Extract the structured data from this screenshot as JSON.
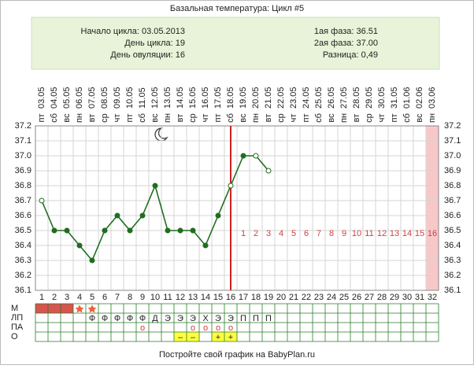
{
  "chart_data": {
    "type": "line",
    "title": "Базальная температура: Цикл #5",
    "info_left": [
      "Начало цикла: 03.05.2013",
      "День цикла: 19",
      "День овуляции: 16"
    ],
    "info_right": [
      "1ая фаза: 36.51",
      "2ая фаза: 37.00",
      "Разница: 0,49"
    ],
    "categories": [
      1,
      2,
      3,
      4,
      5,
      6,
      7,
      8,
      9,
      10,
      11,
      12,
      13,
      14,
      15,
      16,
      17,
      18,
      19,
      20,
      21,
      22,
      23,
      24,
      25,
      26,
      27,
      28,
      29,
      30,
      31,
      32
    ],
    "dates": [
      "03.05",
      "04.05",
      "05.05",
      "06.05",
      "07.05",
      "08.05",
      "09.05",
      "10.05",
      "11.05",
      "12.05",
      "13.05",
      "14.05",
      "15.05",
      "16.05",
      "17.05",
      "18.05",
      "19.05",
      "20.05",
      "21.05",
      "22.05",
      "23.05",
      "24.05",
      "25.05",
      "26.05",
      "27.05",
      "28.05",
      "29.05",
      "30.05",
      "31.05",
      "01.06",
      "02.06",
      "03.06"
    ],
    "weekdays": [
      "пт",
      "сб",
      "вс",
      "пн",
      "вт",
      "ср",
      "чт",
      "пт",
      "сб",
      "вс",
      "пн",
      "вт",
      "ср",
      "чт",
      "пт",
      "сб",
      "вс",
      "пн",
      "вт",
      "ср",
      "чт",
      "пт",
      "сб",
      "вс",
      "пн",
      "вт",
      "ср",
      "чт",
      "пт",
      "сб",
      "вс",
      "пн"
    ],
    "values": [
      36.7,
      36.5,
      36.5,
      36.4,
      36.3,
      36.5,
      36.6,
      36.5,
      36.6,
      36.8,
      36.5,
      36.5,
      36.5,
      36.4,
      36.6,
      36.8,
      37.0,
      37.0,
      36.9,
      null,
      null,
      null,
      null,
      null,
      null,
      null,
      null,
      null,
      null,
      null,
      null,
      null
    ],
    "open_markers": [
      1,
      16,
      18,
      19
    ],
    "color": "#1f6e1f",
    "ovulation_day": 16,
    "luteal_start_day": 17,
    "luteal_days": [
      1,
      2,
      3,
      4,
      5,
      6,
      7,
      8,
      9,
      10,
      11,
      12,
      13,
      14,
      15,
      16
    ],
    "ylim": [
      36.1,
      37.2
    ],
    "yticks": [
      {
        "value": 36.1,
        "label": "36.1"
      },
      {
        "value": 36.2,
        "label": "36.2"
      },
      {
        "value": 36.3,
        "label": "36.3"
      },
      {
        "value": 36.4,
        "label": "36.4"
      },
      {
        "value": 36.5,
        "label": "36.5"
      },
      {
        "value": 36.6,
        "label": "36.6"
      },
      {
        "value": 36.7,
        "label": "36.7"
      },
      {
        "value": 36.8,
        "label": "36.8"
      },
      {
        "value": 36.9,
        "label": "36.9"
      },
      {
        "value": 37.0,
        "label": "37.0"
      },
      {
        "value": 37.1,
        "label": "37.1"
      },
      {
        "value": 37.2,
        "label": "37.2"
      }
    ],
    "grid": true,
    "rows": [
      {
        "label": "М",
        "period_days": [
          1,
          2,
          3
        ],
        "star_days": [
          4,
          5
        ]
      },
      {
        "label": "ЛП",
        "cells": [
          null,
          null,
          null,
          null,
          "Ф",
          "Ф",
          "Ф",
          "Ф",
          "Ф",
          "Д",
          "Э",
          "Э",
          "Э",
          "Х",
          "Э",
          "Э",
          "П",
          "П",
          "П"
        ]
      },
      {
        "label": "ПА",
        "cells": [
          null,
          null,
          null,
          null,
          null,
          null,
          null,
          null,
          "о",
          null,
          null,
          null,
          "о",
          "о",
          "о",
          "о"
        ]
      },
      {
        "label": "О",
        "cells": [
          null,
          null,
          null,
          null,
          null,
          null,
          null,
          null,
          null,
          null,
          null,
          "–",
          "–",
          null,
          "+",
          "+"
        ]
      }
    ],
    "footer": "Постройте свой график на BabyPlan.ru"
  }
}
